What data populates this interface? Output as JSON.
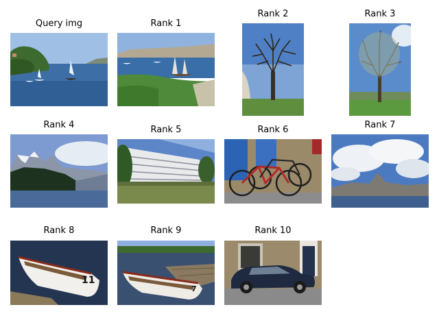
{
  "panels": [
    {
      "label": "Query img",
      "scene": "harbor with sailboats and hills"
    },
    {
      "label": "Rank 1",
      "scene": "bay with sailboats and green shore"
    },
    {
      "label": "Rank 2",
      "scene": "leafless tree on grass under blue sky"
    },
    {
      "label": "Rank 3",
      "scene": "tall tree in park under blue sky"
    },
    {
      "label": "Rank 4",
      "scene": "snowy mountains over lake with forest"
    },
    {
      "label": "Rank 5",
      "scene": "white curved building with lawn"
    },
    {
      "label": "Rank 6",
      "scene": "two bicycles against wall with blue door"
    },
    {
      "label": "Rank 7",
      "scene": "mountain by lake under cloudy sky"
    },
    {
      "label": "Rank 8",
      "scene": "white rowing boat on dark water"
    },
    {
      "label": "Rank 9",
      "scene": "rowing boat beside wooden jetty"
    },
    {
      "label": "Rank 10",
      "scene": "dark blue car parked on street"
    }
  ]
}
